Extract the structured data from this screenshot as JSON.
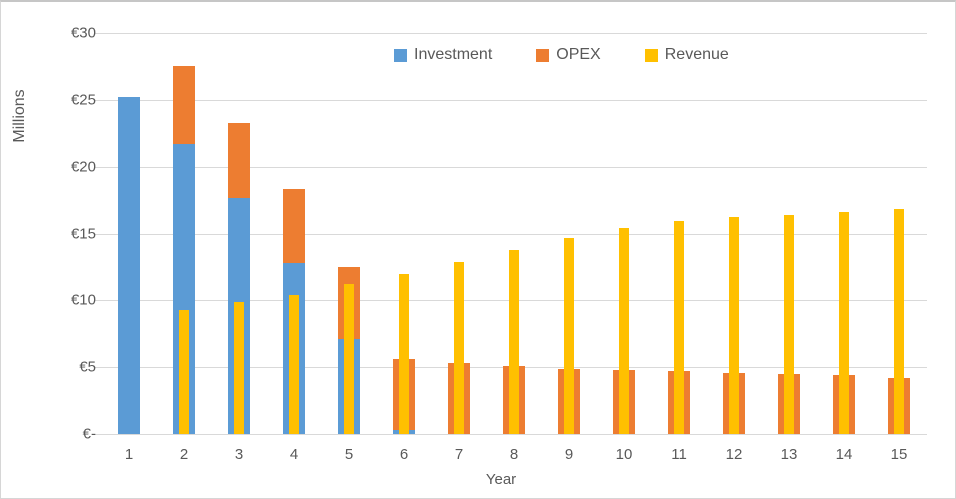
{
  "chart_data": {
    "type": "bar",
    "title": "",
    "xlabel": "Year",
    "ylabel": "Millions",
    "categories": [
      "1",
      "2",
      "3",
      "4",
      "5",
      "6",
      "7",
      "8",
      "9",
      "10",
      "11",
      "12",
      "13",
      "14",
      "15"
    ],
    "series": [
      {
        "name": "Investment",
        "color": "#5B9BD5",
        "role": "stacked-wide-bottom",
        "values": [
          25.2,
          21.7,
          17.7,
          12.8,
          7.1,
          0.3,
          0,
          0,
          0,
          0,
          0,
          0,
          0,
          0,
          0
        ]
      },
      {
        "name": "OPEX",
        "color": "#ED7D31",
        "role": "stacked-wide-top",
        "values": [
          0,
          5.8,
          5.6,
          5.5,
          5.4,
          5.3,
          5.3,
          5.1,
          4.9,
          4.8,
          4.7,
          4.6,
          4.5,
          4.4,
          4.2
        ]
      },
      {
        "name": "Revenue",
        "color": "#FFC000",
        "role": "narrow-overlay",
        "values": [
          0,
          9.3,
          9.9,
          10.4,
          11.2,
          12.0,
          12.9,
          13.8,
          14.7,
          15.4,
          15.9,
          16.2,
          16.4,
          16.6,
          16.8
        ]
      }
    ],
    "ylim": [
      0,
      30
    ],
    "ytick_step": 5,
    "ytick_labels": [
      "€-",
      "€5",
      "€10",
      "€15",
      "€20",
      "€25",
      "€30"
    ],
    "grid": true,
    "legend_position": "top-center",
    "currency": "EUR",
    "units": "Millions"
  },
  "colors": {
    "text": "#595959",
    "gridline": "#D9D9D9",
    "background": "#FFFFFF",
    "investment": "#5B9BD5",
    "opex": "#ED7D31",
    "revenue": "#FFC000"
  }
}
